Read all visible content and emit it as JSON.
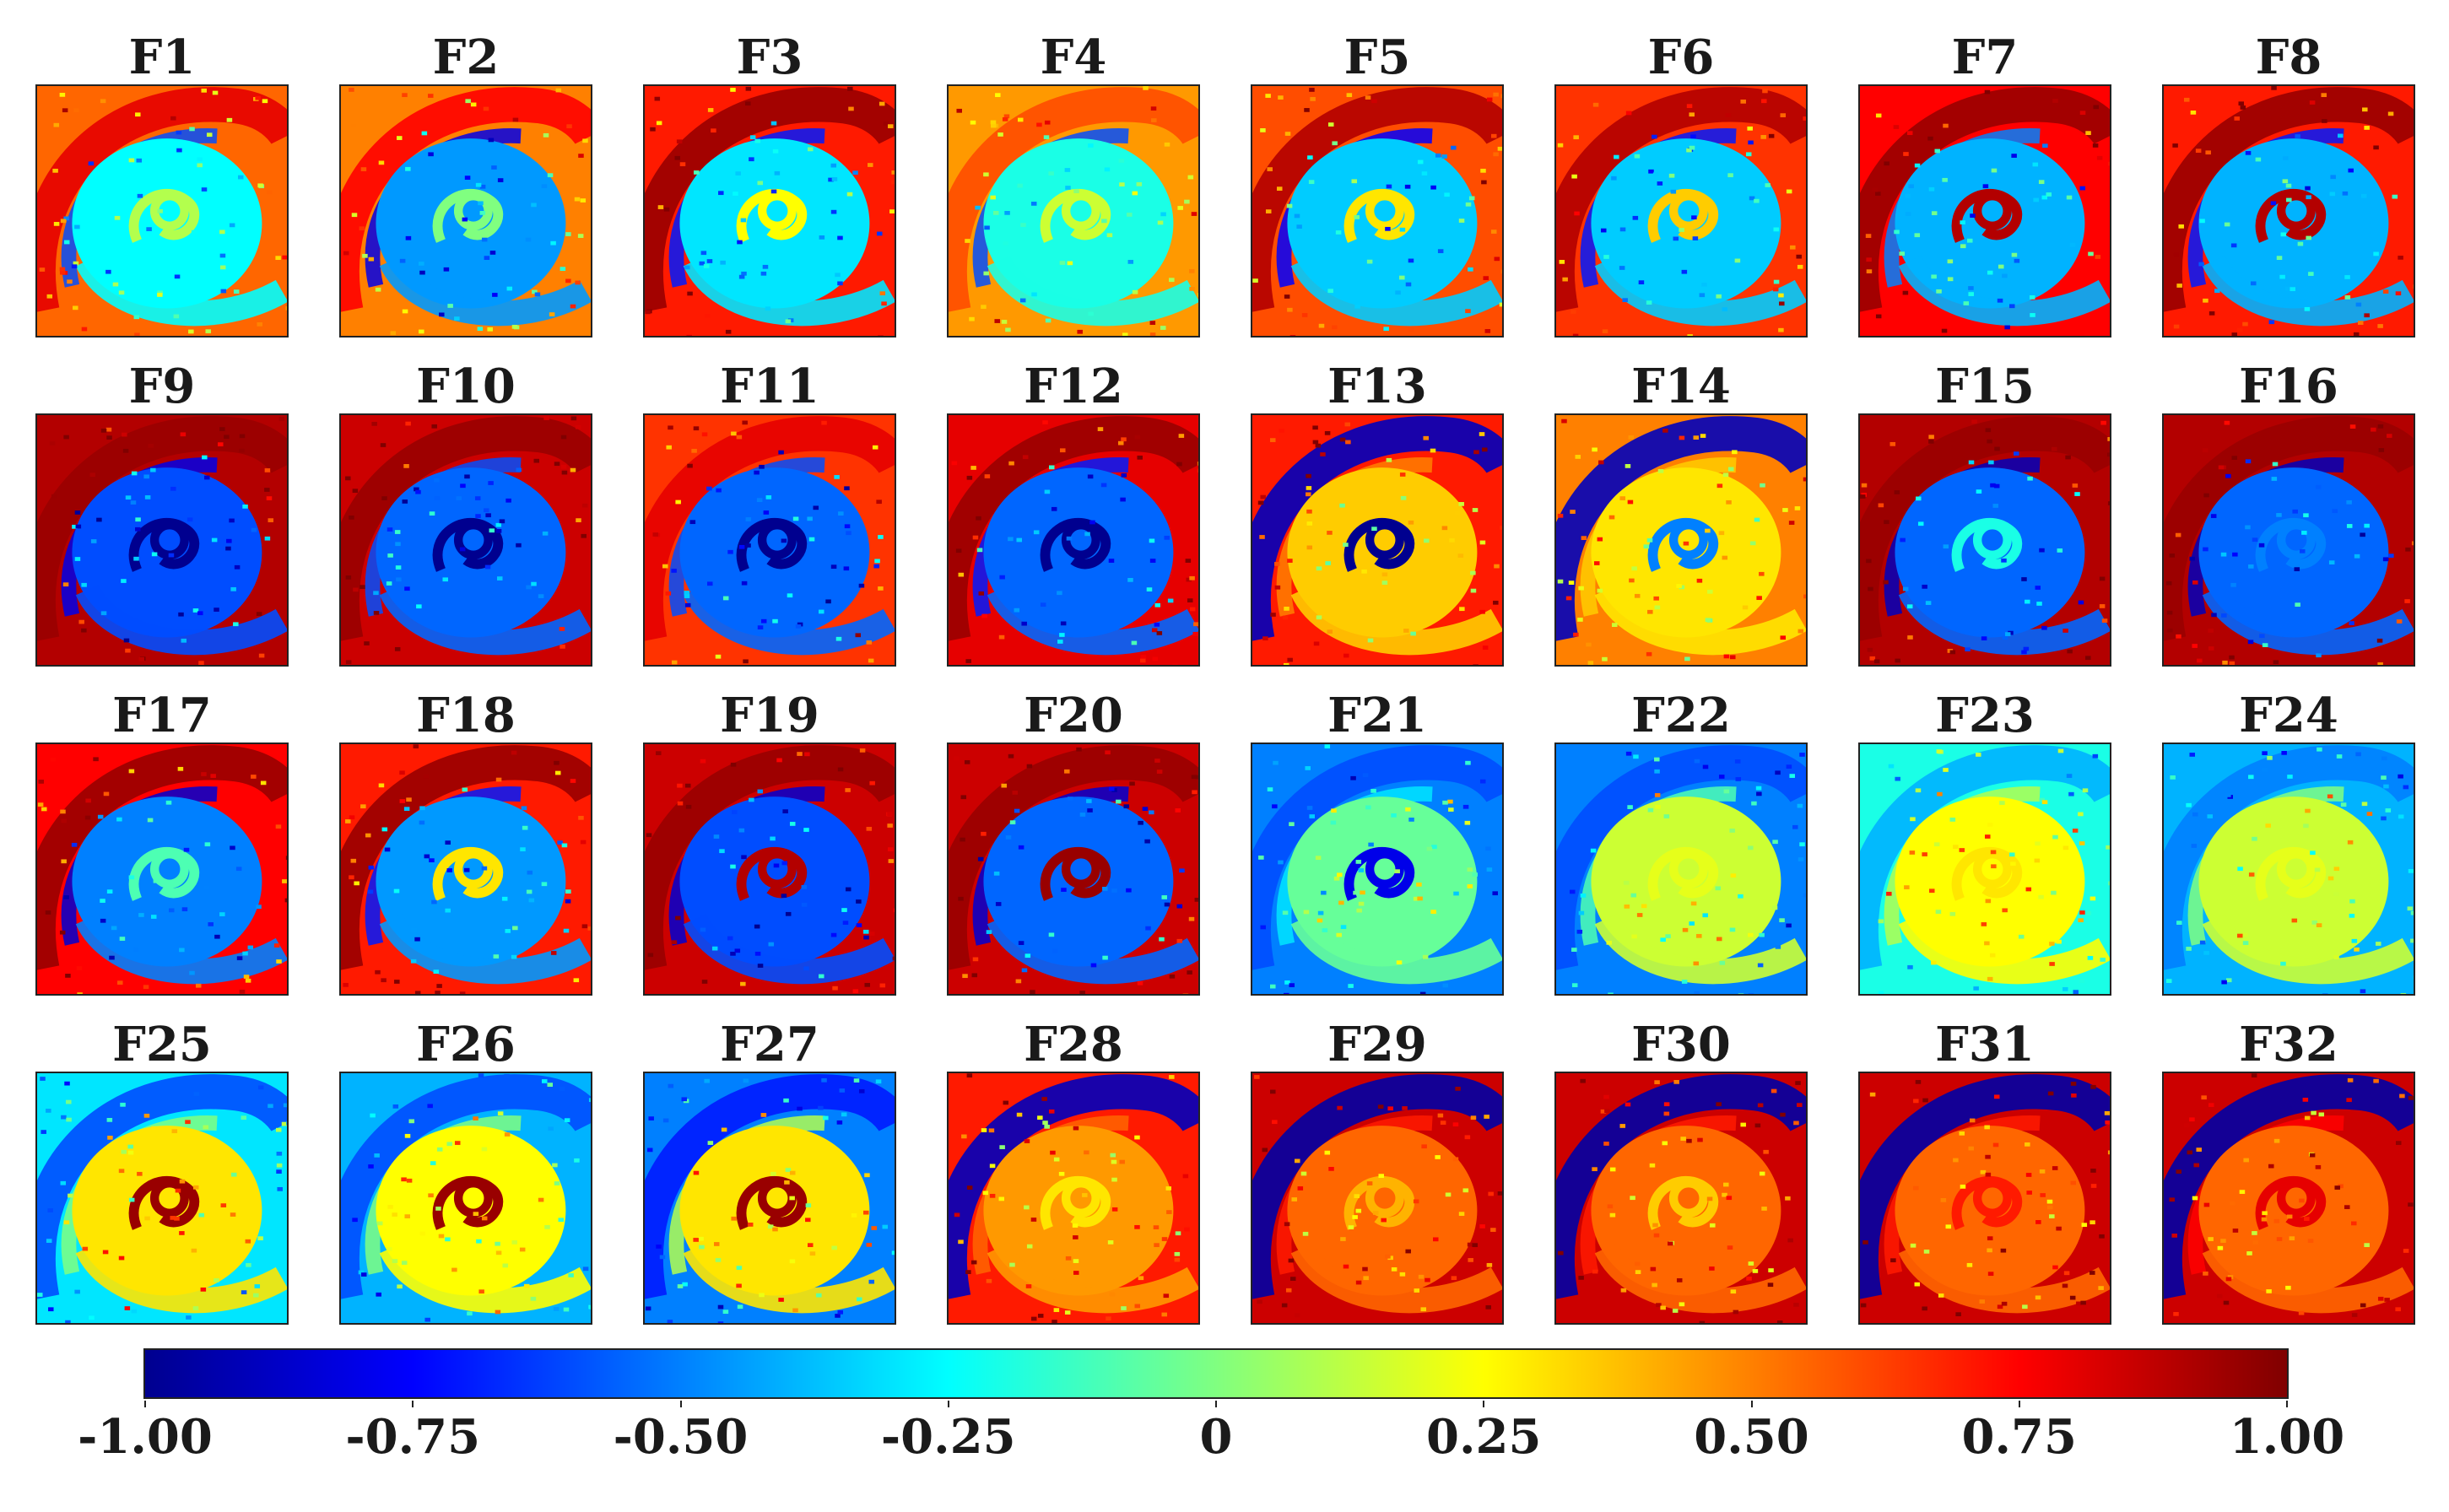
{
  "figure": {
    "panels": [
      {
        "label": "F1",
        "v": [
          0.1,
          -0.25,
          0.8,
          -0.6,
          0.55
        ]
      },
      {
        "label": "F2",
        "v": [
          0.0,
          -0.45,
          0.75,
          -0.8,
          0.5
        ]
      },
      {
        "label": "F3",
        "v": [
          0.25,
          -0.3,
          0.95,
          -0.7,
          0.7
        ]
      },
      {
        "label": "F4",
        "v": [
          0.15,
          -0.2,
          0.6,
          -0.6,
          0.45
        ]
      },
      {
        "label": "F5",
        "v": [
          0.3,
          -0.35,
          0.9,
          -0.75,
          0.6
        ]
      },
      {
        "label": "F6",
        "v": [
          0.35,
          -0.35,
          0.9,
          -0.7,
          0.65
        ]
      },
      {
        "label": "F7",
        "v": [
          0.9,
          -0.4,
          0.95,
          -0.5,
          0.75
        ]
      },
      {
        "label": "F8",
        "v": [
          0.9,
          -0.4,
          0.95,
          -0.7,
          0.7
        ]
      },
      {
        "label": "F9",
        "v": [
          -1.0,
          -0.6,
          0.95,
          -0.8,
          0.9
        ]
      },
      {
        "label": "F10",
        "v": [
          -1.0,
          -0.55,
          0.95,
          -0.6,
          0.85
        ]
      },
      {
        "label": "F11",
        "v": [
          -1.0,
          -0.55,
          0.8,
          -0.6,
          0.65
        ]
      },
      {
        "label": "F12",
        "v": [
          -1.0,
          -0.55,
          0.95,
          -0.7,
          0.8
        ]
      },
      {
        "label": "F13",
        "v": [
          -1.0,
          0.35,
          -0.9,
          0.5,
          0.7
        ]
      },
      {
        "label": "F14",
        "v": [
          -0.5,
          0.3,
          -0.9,
          0.35,
          0.5
        ]
      },
      {
        "label": "F15",
        "v": [
          -0.2,
          -0.55,
          0.95,
          -0.9,
          0.9
        ]
      },
      {
        "label": "F16",
        "v": [
          -0.5,
          -0.55,
          0.95,
          -0.9,
          0.9
        ]
      },
      {
        "label": "F17",
        "v": [
          -0.1,
          -0.5,
          0.95,
          -0.85,
          0.75
        ]
      },
      {
        "label": "F18",
        "v": [
          0.3,
          -0.45,
          0.95,
          -0.7,
          0.7
        ]
      },
      {
        "label": "F19",
        "v": [
          0.9,
          -0.6,
          0.95,
          -0.85,
          0.85
        ]
      },
      {
        "label": "F20",
        "v": [
          0.95,
          -0.55,
          0.95,
          -0.85,
          0.85
        ]
      },
      {
        "label": "F21",
        "v": [
          -0.8,
          -0.05,
          -0.6,
          -0.3,
          -0.5
        ]
      },
      {
        "label": "F22",
        "v": [
          0.2,
          0.15,
          -0.6,
          -0.1,
          -0.5
        ]
      },
      {
        "label": "F23",
        "v": [
          0.3,
          0.25,
          -0.4,
          0.1,
          -0.2
        ]
      },
      {
        "label": "F24",
        "v": [
          0.2,
          0.15,
          -0.5,
          0.0,
          -0.4
        ]
      },
      {
        "label": "F25",
        "v": [
          0.95,
          0.3,
          -0.6,
          0.0,
          -0.3
        ]
      },
      {
        "label": "F26",
        "v": [
          0.95,
          0.25,
          -0.6,
          0.0,
          -0.4
        ]
      },
      {
        "label": "F27",
        "v": [
          0.95,
          0.3,
          -0.7,
          0.1,
          -0.5
        ]
      },
      {
        "label": "F28",
        "v": [
          0.3,
          0.45,
          -0.9,
          0.55,
          0.7
        ]
      },
      {
        "label": "F29",
        "v": [
          0.4,
          0.55,
          -0.95,
          0.7,
          0.85
        ]
      },
      {
        "label": "F30",
        "v": [
          0.35,
          0.55,
          -0.95,
          0.7,
          0.85
        ]
      },
      {
        "label": "F31",
        "v": [
          0.7,
          0.55,
          -0.95,
          0.7,
          0.85
        ]
      },
      {
        "label": "F32",
        "v": [
          0.8,
          0.55,
          -0.95,
          0.75,
          0.85
        ]
      }
    ],
    "colorbar": {
      "min": -1.0,
      "max": 1.0,
      "ticks": [
        {
          "value": -1.0,
          "label": "-1.00"
        },
        {
          "value": -0.75,
          "label": "-0.75"
        },
        {
          "value": -0.5,
          "label": "-0.50"
        },
        {
          "value": -0.25,
          "label": "-0.25"
        },
        {
          "value": 0.0,
          "label": "0"
        },
        {
          "value": 0.25,
          "label": "0.25"
        },
        {
          "value": 0.5,
          "label": "0.50"
        },
        {
          "value": 0.75,
          "label": "0.75"
        },
        {
          "value": 1.0,
          "label": "1.00"
        }
      ],
      "colormap": [
        "#00008f",
        "#0000ff",
        "#0080ff",
        "#00ffff",
        "#80ff80",
        "#ffff00",
        "#ff8000",
        "#ff0000",
        "#800000"
      ]
    }
  }
}
